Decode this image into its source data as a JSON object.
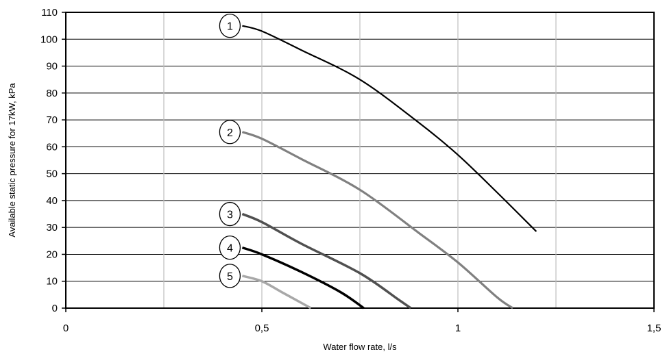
{
  "chart_data": {
    "type": "line",
    "xlabel": "Water flow rate, l/s",
    "ylabel": "Available static pressure for 17kW, kPa",
    "xlim": [
      0,
      1.5
    ],
    "ylim": [
      0,
      110
    ],
    "x_ticks": [
      "0",
      "0,5",
      "1",
      "1,5"
    ],
    "x_tick_values": [
      0,
      0.5,
      1,
      1.5
    ],
    "y_ticks": [
      "0",
      "10",
      "20",
      "30",
      "40",
      "50",
      "60",
      "70",
      "80",
      "90",
      "100",
      "110"
    ],
    "y_tick_values": [
      0,
      10,
      20,
      30,
      40,
      50,
      60,
      70,
      80,
      90,
      100,
      110
    ],
    "grid": {
      "vertical_minor_every": 0.25,
      "horizontal": true
    },
    "series": [
      {
        "name": "1",
        "color": "#000000",
        "stroke": 2.2,
        "x": [
          0.45,
          0.5,
          0.6,
          0.75,
          0.9,
          1.0,
          1.1,
          1.2
        ],
        "y": [
          105,
          103,
          96,
          85,
          69,
          57,
          43,
          28.5
        ]
      },
      {
        "name": "2",
        "color": "#808080",
        "stroke": 3.2,
        "x": [
          0.45,
          0.5,
          0.6,
          0.75,
          0.9,
          1.0,
          1.1,
          1.14
        ],
        "y": [
          65.5,
          63,
          55.5,
          44,
          28,
          17,
          4,
          0
        ]
      },
      {
        "name": "3",
        "color": "#505050",
        "stroke": 3.5,
        "x": [
          0.45,
          0.5,
          0.6,
          0.75,
          0.85,
          0.88
        ],
        "y": [
          35,
          32,
          24,
          13,
          3,
          0
        ]
      },
      {
        "name": "4",
        "color": "#000000",
        "stroke": 3.5,
        "x": [
          0.45,
          0.5,
          0.6,
          0.7,
          0.76
        ],
        "y": [
          22.5,
          20,
          13.5,
          6,
          0
        ]
      },
      {
        "name": "5",
        "color": "#a8a8a8",
        "stroke": 3.5,
        "x": [
          0.45,
          0.5,
          0.55,
          0.6,
          0.625
        ],
        "y": [
          12,
          10,
          6,
          2,
          0
        ]
      }
    ],
    "callouts": [
      {
        "label": "1",
        "series_index": 0,
        "at_x": 0.45,
        "at_y": 105
      },
      {
        "label": "2",
        "series_index": 1,
        "at_x": 0.45,
        "at_y": 65.5
      },
      {
        "label": "3",
        "series_index": 2,
        "at_x": 0.45,
        "at_y": 35
      },
      {
        "label": "4",
        "series_index": 3,
        "at_x": 0.45,
        "at_y": 22.5
      },
      {
        "label": "5",
        "series_index": 4,
        "at_x": 0.45,
        "at_y": 12
      }
    ]
  }
}
